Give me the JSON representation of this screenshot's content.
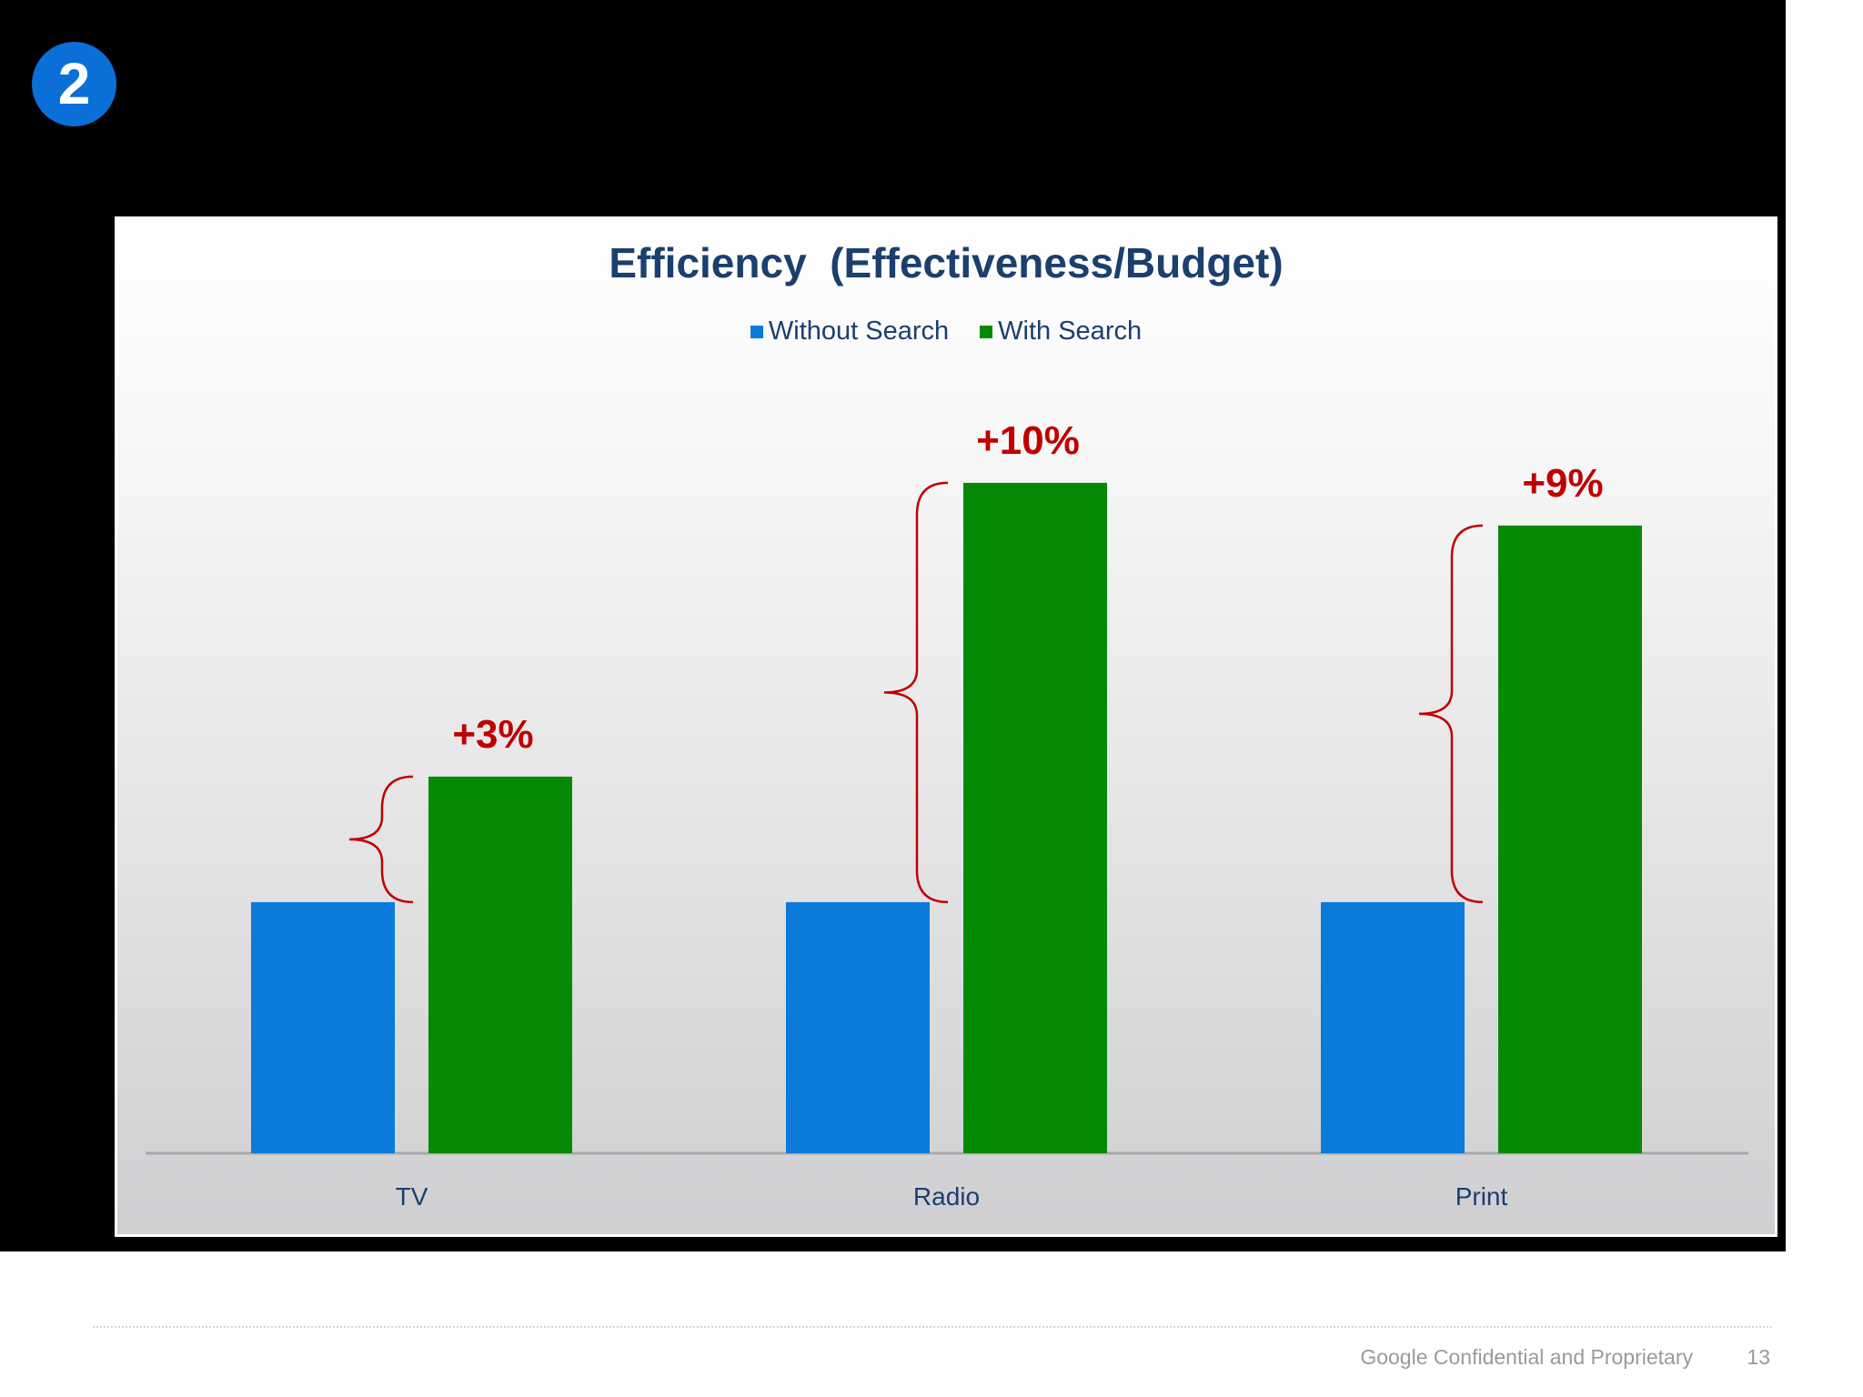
{
  "badge": {
    "number": "2",
    "color": "#0b6fd8"
  },
  "chart_data": {
    "type": "bar",
    "title": "Efficiency  (Effectiveness/Budget)",
    "xlabel": "",
    "ylabel": "",
    "categories": [
      "TV",
      "Radio",
      "Print"
    ],
    "series": [
      {
        "name": "Without Search",
        "color": "#0b7ad8",
        "values": [
          100,
          100,
          100
        ]
      },
      {
        "name": "With Search",
        "color": "#058a05",
        "values": [
          150,
          267,
          250
        ]
      }
    ],
    "annotations": [
      "+3%",
      "+10%",
      "+9%"
    ],
    "annotation_color": "#c00000",
    "ylim": [
      0,
      280
    ],
    "grid": false,
    "legend": "top-center"
  },
  "footer": {
    "text": "Google Confidential and Proprietary",
    "page": "13"
  }
}
